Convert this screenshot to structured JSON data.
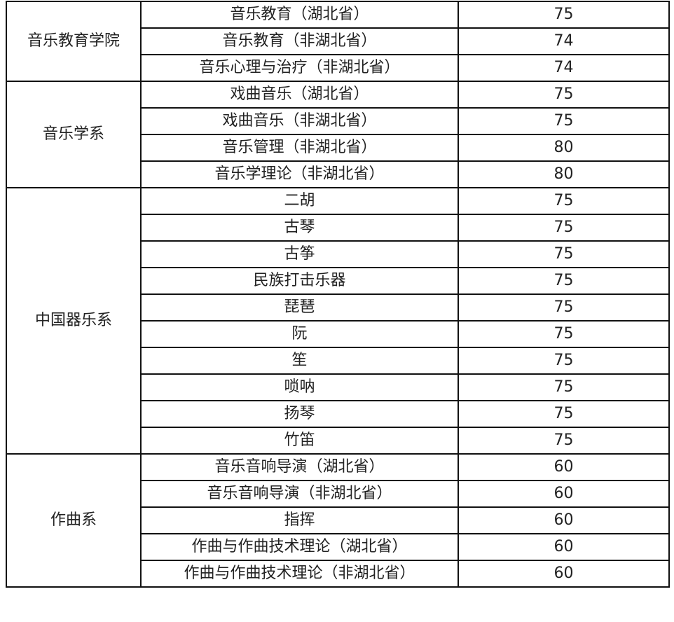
{
  "groups": [
    {
      "department": "音乐教育学院",
      "rows": [
        {
          "major": "音乐教育（湖北省）",
          "score": "75"
        },
        {
          "major": "音乐教育（非湖北省）",
          "score": "74"
        },
        {
          "major": "音乐心理与治疗（非湖北省）",
          "score": "74"
        }
      ]
    },
    {
      "department": "音乐学系",
      "rows": [
        {
          "major": "戏曲音乐（湖北省）",
          "score": "75"
        },
        {
          "major": "戏曲音乐（非湖北省）",
          "score": "75"
        },
        {
          "major": "音乐管理（非湖北省）",
          "score": "80"
        },
        {
          "major": "音乐学理论（非湖北省）",
          "score": "80"
        }
      ]
    },
    {
      "department": "中国器乐系",
      "rows": [
        {
          "major": "二胡",
          "score": "75"
        },
        {
          "major": "古琴",
          "score": "75"
        },
        {
          "major": "古筝",
          "score": "75"
        },
        {
          "major": "民族打击乐器",
          "score": "75"
        },
        {
          "major": "琵琶",
          "score": "75"
        },
        {
          "major": "阮",
          "score": "75"
        },
        {
          "major": "笙",
          "score": "75"
        },
        {
          "major": "唢呐",
          "score": "75"
        },
        {
          "major": "扬琴",
          "score": "75"
        },
        {
          "major": "竹笛",
          "score": "75"
        }
      ]
    },
    {
      "department": "作曲系",
      "rows": [
        {
          "major": "音乐音响导演（湖北省）",
          "score": "60"
        },
        {
          "major": "音乐音响导演（非湖北省）",
          "score": "60"
        },
        {
          "major": "指挥",
          "score": "60"
        },
        {
          "major": "作曲与作曲技术理论（湖北省）",
          "score": "60"
        },
        {
          "major": "作曲与作曲技术理论（非湖北省）",
          "score": "60"
        }
      ]
    }
  ]
}
